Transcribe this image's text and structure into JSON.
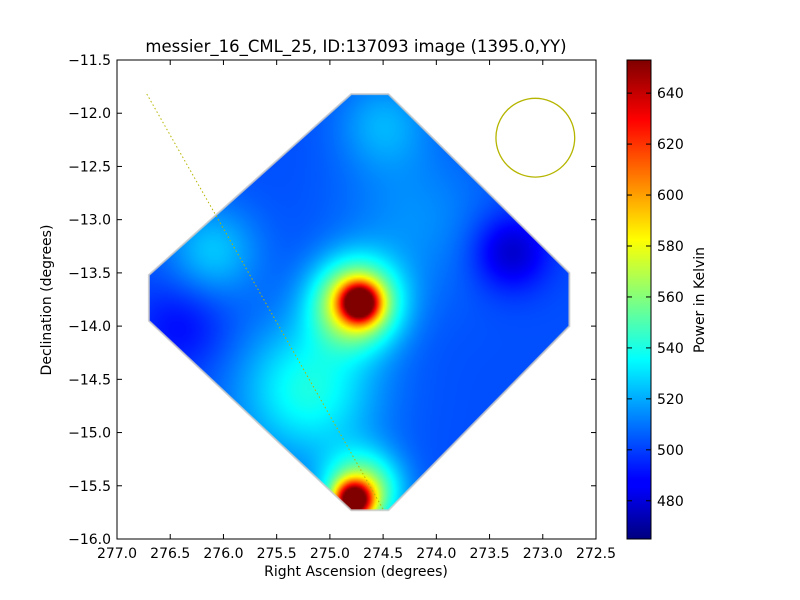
{
  "chart_data": {
    "type": "heatmap",
    "title": "messier_16_CML_25, ID:137093 image (1395.0,YY)",
    "xlabel": "Right Ascension (degrees)",
    "ylabel": "Declination (degrees)",
    "xlim": [
      277.0,
      272.5
    ],
    "ylim": [
      -16.0,
      -11.5
    ],
    "x_ticks": [
      277.0,
      276.5,
      276.0,
      275.5,
      275.0,
      274.5,
      274.0,
      273.5,
      273.0,
      272.5
    ],
    "x_tick_labels": [
      "277.0",
      "276.5",
      "276.0",
      "275.5",
      "275.0",
      "274.5",
      "274.0",
      "273.5",
      "273.0",
      "272.5"
    ],
    "y_ticks": [
      -11.5,
      -12.0,
      -12.5,
      -13.0,
      -13.5,
      -14.0,
      -14.5,
      -15.0,
      -15.5,
      -16.0
    ],
    "y_tick_labels": [
      "−11.5",
      "−12.0",
      "−12.5",
      "−13.0",
      "−13.5",
      "−14.0",
      "−14.5",
      "−15.0",
      "−15.5",
      "−16.0"
    ],
    "colorbar": {
      "label": "Power in Kelvin",
      "range": [
        465,
        653
      ],
      "ticks": [
        480,
        500,
        520,
        540,
        560,
        580,
        600,
        620,
        640
      ],
      "tick_labels": [
        "480",
        "500",
        "520",
        "540",
        "560",
        "580",
        "600",
        "620",
        "640"
      ],
      "colormap": "jet"
    },
    "map_footprint": [
      [
        274.8,
        -11.82
      ],
      [
        274.45,
        -11.82
      ],
      [
        272.75,
        -13.5
      ],
      [
        272.75,
        -14.0
      ],
      [
        274.45,
        -15.73
      ],
      [
        274.8,
        -15.73
      ],
      [
        276.7,
        -13.95
      ],
      [
        276.7,
        -13.52
      ]
    ],
    "sources": [
      {
        "ra": 274.72,
        "dec": -13.78,
        "value": 625,
        "spread": 0.12
      },
      {
        "ra": 274.75,
        "dec": -13.78,
        "value": 590,
        "spread": 0.28
      },
      {
        "ra": 274.78,
        "dec": -15.64,
        "value": 640,
        "spread": 0.12
      },
      {
        "ra": 274.7,
        "dec": -15.55,
        "value": 570,
        "spread": 0.25
      },
      {
        "ra": 275.2,
        "dec": -14.6,
        "value": 540,
        "spread": 0.45
      },
      {
        "ra": 276.1,
        "dec": -13.3,
        "value": 525,
        "spread": 0.3
      },
      {
        "ra": 274.2,
        "dec": -13.0,
        "value": 515,
        "spread": 0.5
      },
      {
        "ra": 274.5,
        "dec": -12.1,
        "value": 520,
        "spread": 0.3
      },
      {
        "ra": 273.3,
        "dec": -13.3,
        "value": 478,
        "spread": 0.25
      },
      {
        "ra": 276.4,
        "dec": -14.0,
        "value": 490,
        "spread": 0.3
      }
    ],
    "background_value": 503,
    "overlays": [
      {
        "type": "line",
        "style": "dotted",
        "color": "#b5b500",
        "points": [
          [
            276.72,
            -11.82
          ],
          [
            274.5,
            -15.72
          ]
        ]
      },
      {
        "type": "circle",
        "color": "#b5b500",
        "center": [
          273.07,
          -12.23
        ],
        "radius_deg": 0.37
      }
    ]
  }
}
